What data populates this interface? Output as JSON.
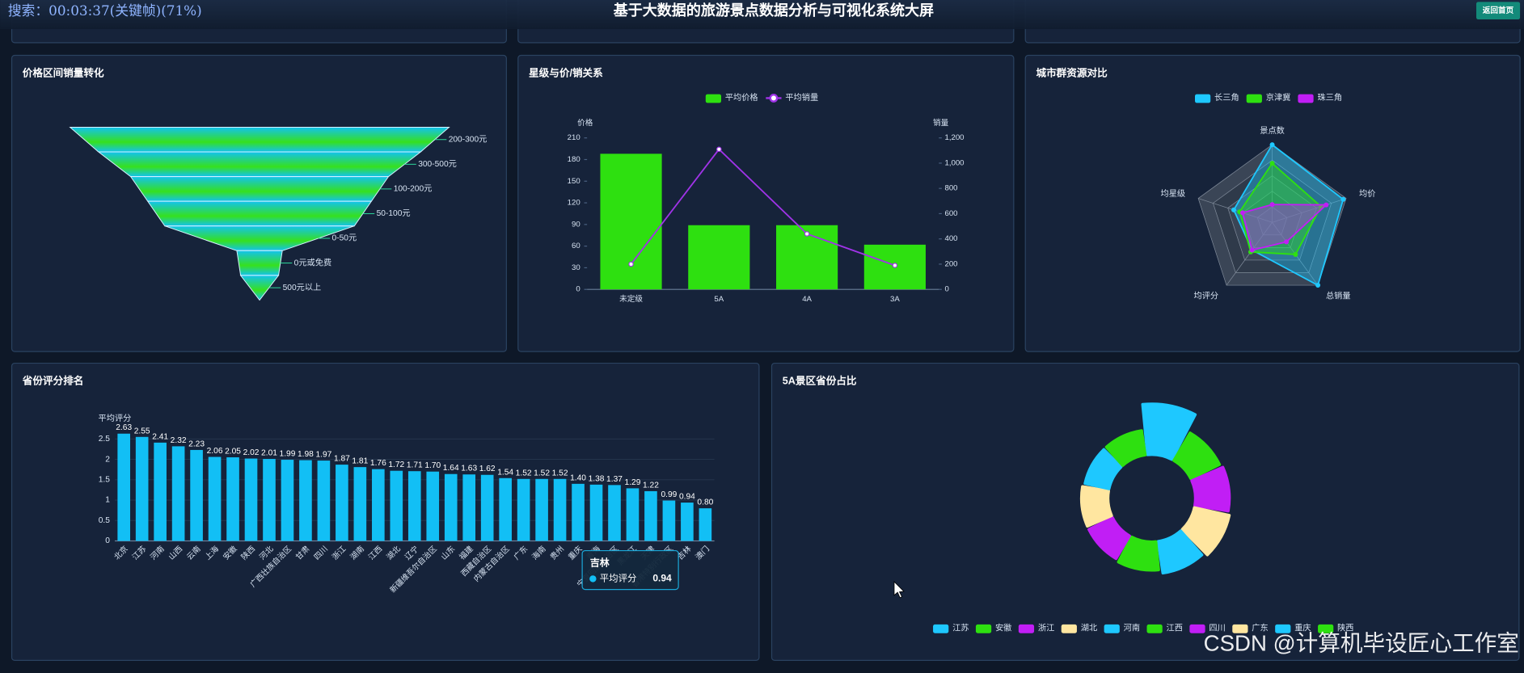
{
  "header": {
    "title": "基于大数据的旅游景点数据分析与可视化系统大屏",
    "search_overlay": "搜索：00:03:37(关键帧)(71%)",
    "back_button": "返回首页"
  },
  "chart_data": [
    {
      "type": "funnel",
      "title": "价格区间销量转化",
      "categories": [
        "200-300元",
        "300-500元",
        "100-200元",
        "50-100元",
        "0-50元",
        "0元或免费",
        "500元以上"
      ],
      "values": [
        100,
        85,
        68,
        59,
        50,
        12,
        10
      ],
      "colors": [
        "#12c2f0",
        "#36e01e"
      ]
    },
    {
      "type": "bar",
      "title": "星级与价/销关系",
      "categories": [
        "未定级",
        "5A",
        "4A",
        "3A"
      ],
      "series": [
        {
          "name": "平均价格",
          "type": "bar",
          "color": "#2ee010",
          "values": [
            188,
            89,
            89,
            62
          ]
        },
        {
          "name": "平均销量",
          "type": "line",
          "axis": "y2",
          "color": "#a033e8",
          "values": [
            200,
            1110,
            440,
            190
          ]
        }
      ],
      "y_label": "价格",
      "y2_label": "销量",
      "ylim": [
        0,
        210
      ],
      "yticks": [
        0,
        30,
        60,
        90,
        120,
        150,
        180,
        210
      ],
      "y2lim": [
        0,
        1200
      ],
      "y2ticks": [
        0,
        200,
        400,
        600,
        800,
        {
          "value": 1000,
          "label": "1,000"
        },
        {
          "value": 1200,
          "label": "1,200"
        }
      ]
    },
    {
      "type": "radar",
      "title": "城市群资源对比",
      "indicators": [
        "景点数",
        "均价",
        "总销量",
        "均评分",
        "均星级"
      ],
      "rlim": [
        0,
        100
      ],
      "series": [
        {
          "name": "长三角",
          "color": "#1ec8ff",
          "values": [
            100,
            96,
            100,
            44,
            52
          ]
        },
        {
          "name": "京津冀",
          "color": "#2ee010",
          "values": [
            76,
            66,
            51,
            47,
            44
          ]
        },
        {
          "name": "珠三角",
          "color": "#c11ef5",
          "values": [
            23,
            73,
            31,
            44,
            40
          ]
        }
      ]
    },
    {
      "type": "bar",
      "title": "省份评分排名",
      "y_label": "平均评分",
      "color": "#12bff5",
      "grid": true,
      "categories": [
        "北京",
        "江苏",
        "河南",
        "山西",
        "云南",
        "上海",
        "安徽",
        "陕西",
        "河北",
        "广西壮族自治区",
        "甘肃",
        "四川",
        "浙江",
        "湖南",
        "江西",
        "湖北",
        "辽宁",
        "新疆维吾尔自治区",
        "山东",
        "福建",
        "西藏自治区",
        "内蒙古自治区",
        "广东",
        "海南",
        "贵州",
        "重庆",
        "青海",
        "宁夏回族自治区",
        "黑龙江",
        "天津",
        "香港特别行政区",
        "吉林",
        "澳门"
      ],
      "values": [
        2.63,
        2.55,
        2.41,
        2.32,
        2.23,
        2.06,
        2.05,
        2.02,
        2.01,
        1.99,
        1.98,
        1.97,
        1.87,
        1.81,
        1.76,
        1.72,
        1.71,
        1.7,
        1.64,
        1.63,
        1.62,
        1.54,
        1.52,
        1.52,
        1.52,
        1.4,
        1.38,
        1.37,
        1.29,
        1.22,
        0.99,
        0.94,
        0.8
      ],
      "value_labels": [
        "2.63",
        "2.55",
        "2.41",
        "2.32",
        "2.23",
        "2.06",
        "2.05",
        "2.02",
        "2.01",
        "1.99",
        "1.98",
        "1.97",
        "1.87",
        "1.81",
        "1.76",
        "1.72",
        "1.71",
        "1.70",
        "1.64",
        "1.63",
        "1.62",
        "1.54",
        "1.52",
        "1.52",
        "1.52",
        "1.40",
        "1.38",
        "1.37",
        "1.29",
        "1.22",
        "0.99",
        "0.94",
        "0.80"
      ],
      "ylim": [
        0,
        2.7
      ],
      "yticks": [
        0,
        0.5,
        1,
        1.5,
        2,
        2.5
      ]
    },
    {
      "type": "pie",
      "title": "5A景区省份占比",
      "rose": true,
      "legend": "bottom",
      "categories": [
        "江苏",
        "安徽",
        "浙江",
        "湖北",
        "河南",
        "江西",
        "四川",
        "广东",
        "重庆",
        "陕西"
      ],
      "values": [
        22,
        12,
        13,
        14,
        12,
        10,
        9,
        9,
        8,
        8
      ],
      "colors": [
        "#1ec8ff",
        "#2ee010",
        "#c11ef5",
        "#ffe6a0",
        "#1ec8ff",
        "#2ee010",
        "#c11ef5",
        "#ffe6a0",
        "#1ec8ff",
        "#2ee010"
      ]
    }
  ],
  "watermark": "CSDN @计算机毕设匠心工作室"
}
